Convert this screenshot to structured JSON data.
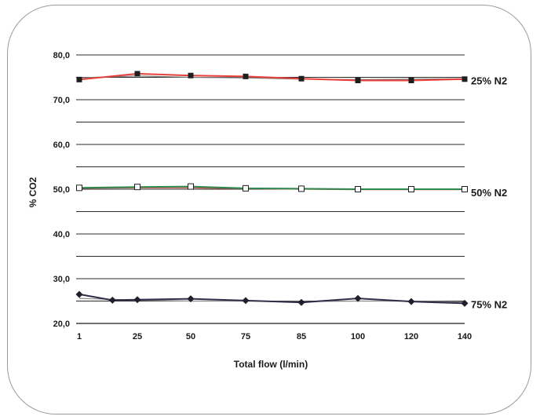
{
  "chart_data": {
    "type": "line",
    "title": "",
    "xlabel": "Total flow (l/min)",
    "ylabel": "% CO2",
    "ylim": [
      20,
      80
    ],
    "grid": true,
    "x_tick_labels": [
      "1",
      "25",
      "50",
      "75",
      "85",
      "100",
      "120",
      "140"
    ],
    "y_tick_labels": [
      "20,0",
      "30,0",
      "40,0",
      "50,0",
      "60,0",
      "70,0",
      "80,0"
    ],
    "y_ticks": [
      20,
      30,
      40,
      50,
      60,
      70,
      80
    ],
    "series": [
      {
        "name": "25% N2",
        "group": "25% N2",
        "color": "#e8413c",
        "marker": "filled-square",
        "x": [
          "1",
          "25",
          "50",
          "75",
          "85",
          "100",
          "120",
          "140"
        ],
        "values": [
          74.5,
          75.8,
          75.4,
          75.2,
          74.7,
          74.3,
          74.3,
          74.6
        ]
      },
      {
        "name": "",
        "group": "25% N2",
        "color": "#7a7a7a",
        "marker": "none",
        "x": [
          "1",
          "25",
          "50",
          "75",
          "85",
          "100",
          "120",
          "140"
        ],
        "values": [
          74.9,
          75.3,
          75.0,
          74.9,
          74.6,
          74.5,
          74.6,
          74.7
        ]
      },
      {
        "name": "50% N2",
        "group": "50% N2",
        "color": "#2d8a4f",
        "marker": "open-square",
        "x": [
          "1",
          "25",
          "50",
          "75",
          "85",
          "100",
          "120",
          "140"
        ],
        "values": [
          50.3,
          50.5,
          50.6,
          50.2,
          50.1,
          50.0,
          50.0,
          50.0
        ]
      },
      {
        "name": "",
        "group": "50% N2",
        "color": "#d9534f",
        "marker": "none",
        "x": [
          "1",
          "25",
          "50",
          "75",
          "85",
          "100",
          "120",
          "140"
        ],
        "values": [
          50.2,
          50.3,
          50.3,
          50.1,
          50.0,
          49.9,
          49.9,
          49.9
        ]
      },
      {
        "name": "75% N2",
        "group": "75% N2",
        "color": "#2e2e4a",
        "marker": "filled-diamond",
        "x": [
          "1",
          "14",
          "25",
          "50",
          "75",
          "85",
          "100",
          "120",
          "140"
        ],
        "values": [
          26.5,
          25.2,
          25.3,
          25.5,
          25.1,
          24.7,
          25.6,
          24.9,
          24.5
        ]
      },
      {
        "name": "",
        "group": "75% N2",
        "color": "#8a8a8a",
        "marker": "none",
        "x": [
          "1",
          "25",
          "50",
          "75",
          "85",
          "100",
          "120",
          "140"
        ],
        "values": [
          25.6,
          25.2,
          25.0,
          25.0,
          24.9,
          25.0,
          25.0,
          24.8
        ]
      }
    ],
    "series_labels": [
      "25% N2",
      "50% N2",
      "75% N2"
    ],
    "series_label_values": [
      75,
      50,
      25
    ]
  }
}
